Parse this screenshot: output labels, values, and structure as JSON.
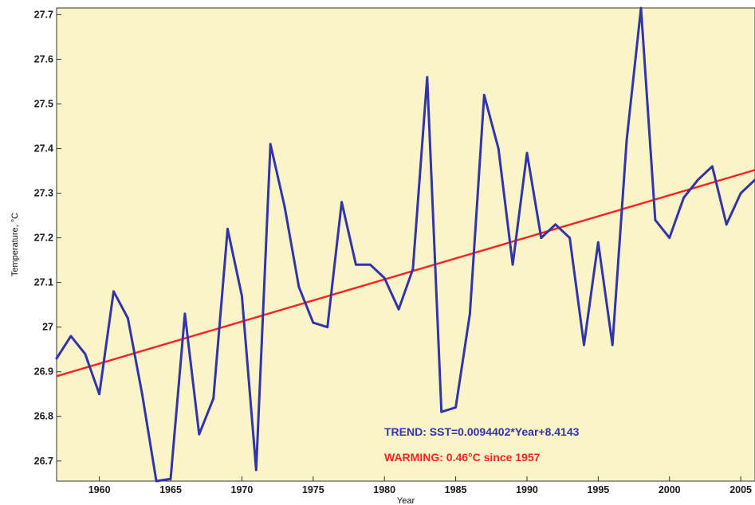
{
  "chart_data": {
    "type": "line",
    "title": "",
    "xlabel": "Year",
    "ylabel": "Temperature, °C",
    "xlim": [
      1957,
      2006
    ],
    "ylim": [
      26.655,
      27.715
    ],
    "x_ticks": [
      1960,
      1965,
      1970,
      1975,
      1980,
      1985,
      1990,
      1995,
      2000,
      2005
    ],
    "x_tick_labels": [
      "1960",
      "1965",
      "1970",
      "1975",
      "1980",
      "1985",
      "1990",
      "1995",
      "2000",
      "2005"
    ],
    "y_ticks": [
      26.7,
      26.8,
      26.9,
      27.0,
      27.1,
      27.2,
      27.3,
      27.4,
      27.5,
      27.6,
      27.7
    ],
    "y_tick_labels": [
      "26.7",
      "26.8",
      "26.9",
      "27",
      "27.1",
      "27.2",
      "27.3",
      "27.4",
      "27.5",
      "27.6",
      "27.7"
    ],
    "grid": false,
    "series": [
      {
        "color": "#3333aa",
        "x": [
          1957,
          1958,
          1959,
          1960,
          1961,
          1962,
          1963,
          1964,
          1965,
          1966,
          1967,
          1968,
          1969,
          1970,
          1971,
          1972,
          1973,
          1974,
          1975,
          1976,
          1977,
          1978,
          1979,
          1980,
          1981,
          1982,
          1983,
          1984,
          1985,
          1986,
          1987,
          1988,
          1989,
          1990,
          1991,
          1992,
          1993,
          1994,
          1995,
          1996,
          1997,
          1998,
          1999,
          2000,
          2001,
          2002,
          2003,
          2004,
          2005,
          2006
        ],
        "values": [
          26.93,
          26.98,
          26.94,
          26.85,
          27.08,
          27.02,
          26.85,
          26.65,
          26.66,
          27.03,
          26.76,
          26.84,
          27.22,
          27.07,
          26.68,
          27.41,
          27.27,
          27.09,
          27.01,
          27.0,
          27.28,
          27.14,
          27.14,
          27.11,
          27.04,
          27.13,
          27.56,
          26.81,
          26.82,
          27.03,
          27.52,
          27.4,
          27.14,
          27.39,
          27.2,
          27.23,
          27.2,
          26.96,
          27.19,
          26.96,
          27.42,
          27.72,
          27.24,
          27.2,
          27.29,
          27.33,
          27.36,
          27.23,
          27.3,
          27.33
        ]
      },
      {
        "color": "#ff2222",
        "x": [
          1957,
          2006
        ],
        "values": [
          26.89,
          27.352
        ]
      }
    ],
    "annotations": [
      {
        "text": "TREND:  SST=0.0094402*Year+8.4143",
        "color": "#3333aa"
      },
      {
        "text": "WARMING: 0.46°C since 1957",
        "color": "#ff2222"
      }
    ]
  },
  "colors": {
    "plot_background": "#faf5c8",
    "series_line": "#3333aa",
    "trend_line": "#ff2222"
  }
}
